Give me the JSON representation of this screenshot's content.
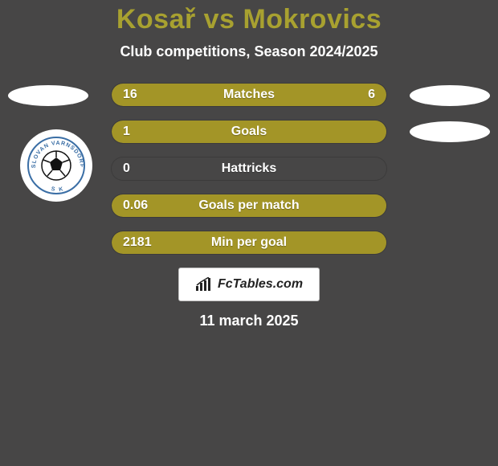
{
  "background_color": "#474646",
  "text_color": "#ffffff",
  "title_color": "#a8a130",
  "title": "Kosař vs Mokrovics",
  "subtitle": "Club competitions, Season 2024/2025",
  "date": "11 march 2025",
  "badge_color": "#ffffff",
  "club_logo_name": "Slovan Varnsdorf",
  "footer": {
    "brand": "FcTables.com",
    "bg": "#ffffff",
    "border": "#c0c0c0",
    "icon_color": "#222222"
  },
  "bar_style": {
    "height": 30,
    "radius": 15,
    "label_fontsize": 16,
    "value_fontsize": 16,
    "text_color": "#ffffff",
    "left_color": "#a39527",
    "right_color": "#a39527",
    "empty_color": "#474646",
    "border_color": "rgba(0,0,0,0.15)"
  },
  "rows": [
    {
      "label": "Matches",
      "left": "16",
      "right": "6",
      "left_num": 16,
      "right_num": 6,
      "left_pct": 72.7,
      "right_pct": 27.3
    },
    {
      "label": "Goals",
      "left": "1",
      "right": "",
      "left_num": 1,
      "right_num": 0,
      "left_pct": 100,
      "right_pct": 0
    },
    {
      "label": "Hattricks",
      "left": "0",
      "right": "",
      "left_num": 0,
      "right_num": 0,
      "left_pct": 0,
      "right_pct": 0
    },
    {
      "label": "Goals per match",
      "left": "0.06",
      "right": "",
      "left_num": 0.06,
      "right_num": 0,
      "left_pct": 100,
      "right_pct": 0
    },
    {
      "label": "Min per goal",
      "left": "2181",
      "right": "",
      "left_num": 2181,
      "right_num": 0,
      "left_pct": 100,
      "right_pct": 0
    }
  ]
}
